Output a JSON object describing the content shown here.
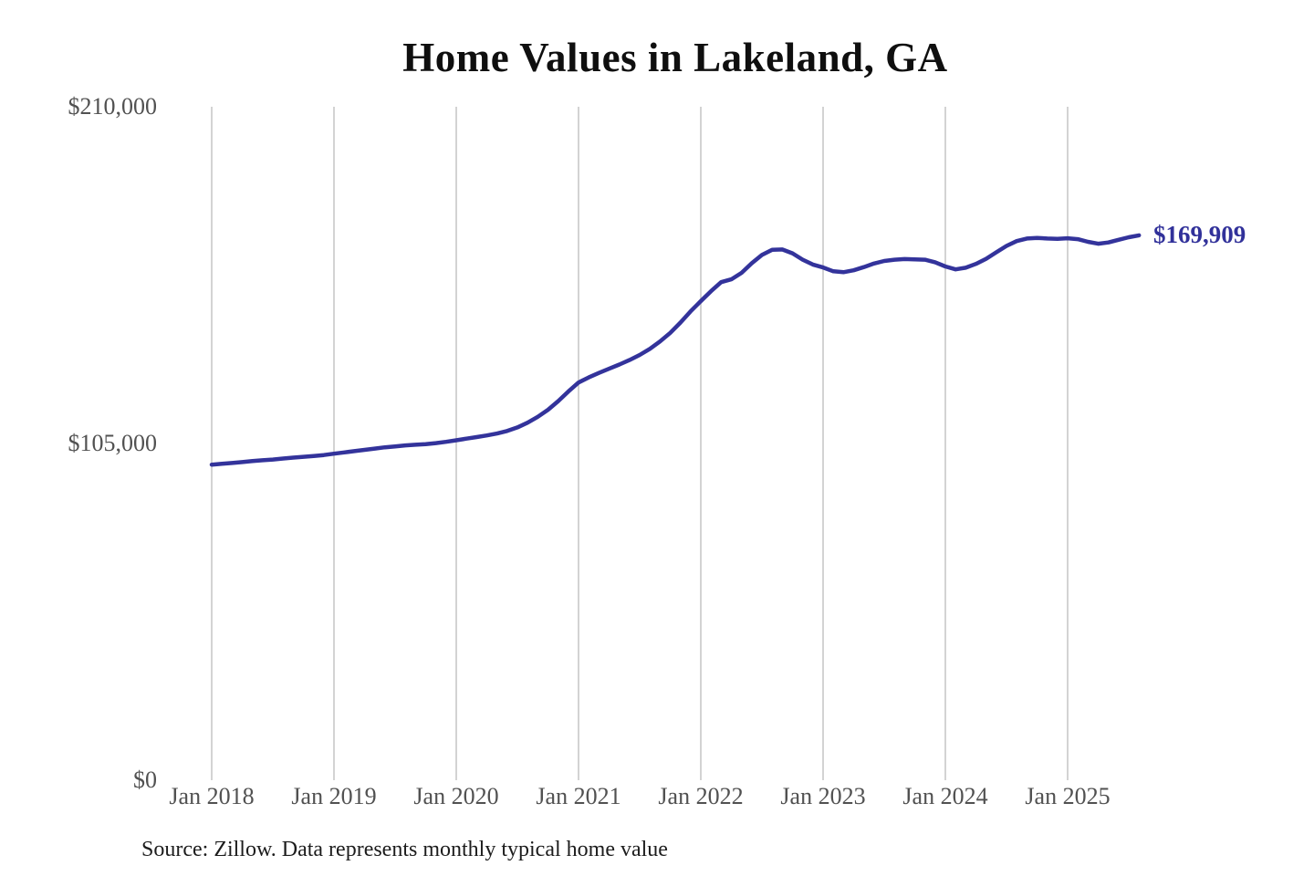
{
  "chart": {
    "title": "Home Values in Lakeland, GA",
    "end_label": "$169,909",
    "source_note": "Source: Zillow. Data represents monthly typical home value",
    "colors": {
      "line": "#33339b",
      "end_label": "#31319a",
      "gridline": "#c8c8c8",
      "axis_text": "#515151",
      "title_text": "#0f0f0f",
      "source_text": "#1c1c1c",
      "background": "#ffffff"
    }
  },
  "chart_data": {
    "type": "line",
    "title": "Home Values in Lakeland, GA",
    "xlabel": "",
    "ylabel": "",
    "ylim": [
      0,
      210000
    ],
    "y_tick_values": [
      0,
      105000,
      210000
    ],
    "y_tick_labels": [
      "$0",
      "$105,000",
      "$210,000"
    ],
    "x_tick_labels": [
      "Jan 2018",
      "Jan 2019",
      "Jan 2020",
      "Jan 2021",
      "Jan 2022",
      "Jan 2023",
      "Jan 2024",
      "Jan 2025"
    ],
    "x_start": "2018-01",
    "x_end": "2025-08",
    "x_interval": "monthly",
    "grid": "vertical-yearly",
    "legend_position": "none",
    "final_value": 169909,
    "final_value_label": "$169,909",
    "series": [
      {
        "name": "Monthly typical home value",
        "unit": "USD",
        "values": [
          98400,
          98650,
          98900,
          99200,
          99500,
          99750,
          100000,
          100300,
          100600,
          100850,
          101100,
          101400,
          101800,
          102200,
          102600,
          103000,
          103400,
          103800,
          104100,
          104400,
          104600,
          104800,
          105100,
          105500,
          106000,
          106500,
          107000,
          107500,
          108100,
          108900,
          110000,
          111500,
          113300,
          115500,
          118200,
          121200,
          124000,
          125600,
          127000,
          128300,
          129600,
          131000,
          132600,
          134500,
          136800,
          139500,
          142700,
          146200,
          149400,
          152500,
          155300,
          156200,
          158200,
          161200,
          163800,
          165400,
          165500,
          164300,
          162300,
          160800,
          159900,
          158700,
          158400,
          159000,
          160000,
          161100,
          161900,
          162300,
          162500,
          162400,
          162300,
          161500,
          160200,
          159300,
          159800,
          161000,
          162600,
          164600,
          166600,
          168100,
          168900,
          169100,
          168900,
          168800,
          169000,
          168700,
          167900,
          167300,
          167700,
          168500,
          169300,
          169909
        ]
      }
    ]
  }
}
